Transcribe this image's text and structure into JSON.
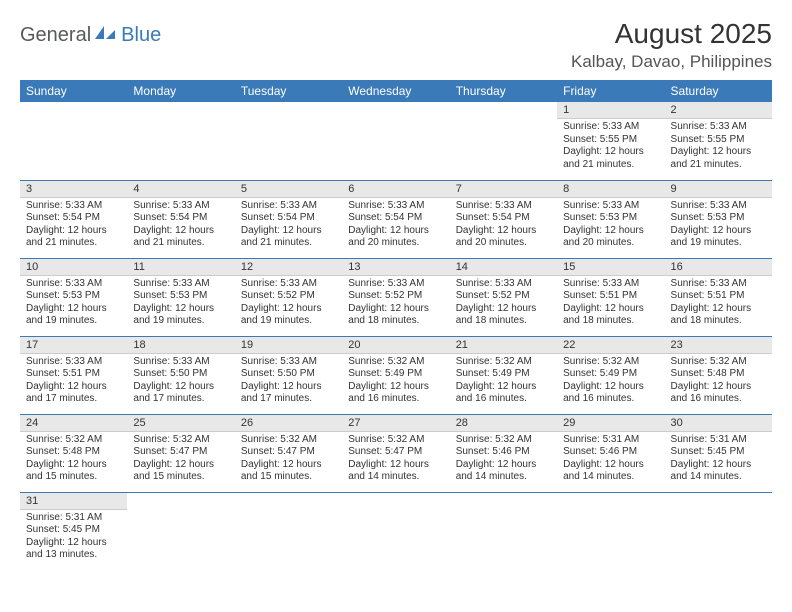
{
  "logo": {
    "part1": "General",
    "part2": "Blue"
  },
  "title": "August 2025",
  "location": "Kalbay, Davao, Philippines",
  "colors": {
    "header_bg": "#3a7ab8",
    "header_fg": "#ffffff",
    "daynum_bg": "#e8e8e8",
    "row_border": "#3a7ab8",
    "text": "#333333"
  },
  "days_of_week": [
    "Sunday",
    "Monday",
    "Tuesday",
    "Wednesday",
    "Thursday",
    "Friday",
    "Saturday"
  ],
  "weeks": [
    [
      {
        "n": "",
        "sunrise": "",
        "sunset": "",
        "daylight": ""
      },
      {
        "n": "",
        "sunrise": "",
        "sunset": "",
        "daylight": ""
      },
      {
        "n": "",
        "sunrise": "",
        "sunset": "",
        "daylight": ""
      },
      {
        "n": "",
        "sunrise": "",
        "sunset": "",
        "daylight": ""
      },
      {
        "n": "",
        "sunrise": "",
        "sunset": "",
        "daylight": ""
      },
      {
        "n": "1",
        "sunrise": "Sunrise: 5:33 AM",
        "sunset": "Sunset: 5:55 PM",
        "daylight": "Daylight: 12 hours and 21 minutes."
      },
      {
        "n": "2",
        "sunrise": "Sunrise: 5:33 AM",
        "sunset": "Sunset: 5:55 PM",
        "daylight": "Daylight: 12 hours and 21 minutes."
      }
    ],
    [
      {
        "n": "3",
        "sunrise": "Sunrise: 5:33 AM",
        "sunset": "Sunset: 5:54 PM",
        "daylight": "Daylight: 12 hours and 21 minutes."
      },
      {
        "n": "4",
        "sunrise": "Sunrise: 5:33 AM",
        "sunset": "Sunset: 5:54 PM",
        "daylight": "Daylight: 12 hours and 21 minutes."
      },
      {
        "n": "5",
        "sunrise": "Sunrise: 5:33 AM",
        "sunset": "Sunset: 5:54 PM",
        "daylight": "Daylight: 12 hours and 21 minutes."
      },
      {
        "n": "6",
        "sunrise": "Sunrise: 5:33 AM",
        "sunset": "Sunset: 5:54 PM",
        "daylight": "Daylight: 12 hours and 20 minutes."
      },
      {
        "n": "7",
        "sunrise": "Sunrise: 5:33 AM",
        "sunset": "Sunset: 5:54 PM",
        "daylight": "Daylight: 12 hours and 20 minutes."
      },
      {
        "n": "8",
        "sunrise": "Sunrise: 5:33 AM",
        "sunset": "Sunset: 5:53 PM",
        "daylight": "Daylight: 12 hours and 20 minutes."
      },
      {
        "n": "9",
        "sunrise": "Sunrise: 5:33 AM",
        "sunset": "Sunset: 5:53 PM",
        "daylight": "Daylight: 12 hours and 19 minutes."
      }
    ],
    [
      {
        "n": "10",
        "sunrise": "Sunrise: 5:33 AM",
        "sunset": "Sunset: 5:53 PM",
        "daylight": "Daylight: 12 hours and 19 minutes."
      },
      {
        "n": "11",
        "sunrise": "Sunrise: 5:33 AM",
        "sunset": "Sunset: 5:53 PM",
        "daylight": "Daylight: 12 hours and 19 minutes."
      },
      {
        "n": "12",
        "sunrise": "Sunrise: 5:33 AM",
        "sunset": "Sunset: 5:52 PM",
        "daylight": "Daylight: 12 hours and 19 minutes."
      },
      {
        "n": "13",
        "sunrise": "Sunrise: 5:33 AM",
        "sunset": "Sunset: 5:52 PM",
        "daylight": "Daylight: 12 hours and 18 minutes."
      },
      {
        "n": "14",
        "sunrise": "Sunrise: 5:33 AM",
        "sunset": "Sunset: 5:52 PM",
        "daylight": "Daylight: 12 hours and 18 minutes."
      },
      {
        "n": "15",
        "sunrise": "Sunrise: 5:33 AM",
        "sunset": "Sunset: 5:51 PM",
        "daylight": "Daylight: 12 hours and 18 minutes."
      },
      {
        "n": "16",
        "sunrise": "Sunrise: 5:33 AM",
        "sunset": "Sunset: 5:51 PM",
        "daylight": "Daylight: 12 hours and 18 minutes."
      }
    ],
    [
      {
        "n": "17",
        "sunrise": "Sunrise: 5:33 AM",
        "sunset": "Sunset: 5:51 PM",
        "daylight": "Daylight: 12 hours and 17 minutes."
      },
      {
        "n": "18",
        "sunrise": "Sunrise: 5:33 AM",
        "sunset": "Sunset: 5:50 PM",
        "daylight": "Daylight: 12 hours and 17 minutes."
      },
      {
        "n": "19",
        "sunrise": "Sunrise: 5:33 AM",
        "sunset": "Sunset: 5:50 PM",
        "daylight": "Daylight: 12 hours and 17 minutes."
      },
      {
        "n": "20",
        "sunrise": "Sunrise: 5:32 AM",
        "sunset": "Sunset: 5:49 PM",
        "daylight": "Daylight: 12 hours and 16 minutes."
      },
      {
        "n": "21",
        "sunrise": "Sunrise: 5:32 AM",
        "sunset": "Sunset: 5:49 PM",
        "daylight": "Daylight: 12 hours and 16 minutes."
      },
      {
        "n": "22",
        "sunrise": "Sunrise: 5:32 AM",
        "sunset": "Sunset: 5:49 PM",
        "daylight": "Daylight: 12 hours and 16 minutes."
      },
      {
        "n": "23",
        "sunrise": "Sunrise: 5:32 AM",
        "sunset": "Sunset: 5:48 PM",
        "daylight": "Daylight: 12 hours and 16 minutes."
      }
    ],
    [
      {
        "n": "24",
        "sunrise": "Sunrise: 5:32 AM",
        "sunset": "Sunset: 5:48 PM",
        "daylight": "Daylight: 12 hours and 15 minutes."
      },
      {
        "n": "25",
        "sunrise": "Sunrise: 5:32 AM",
        "sunset": "Sunset: 5:47 PM",
        "daylight": "Daylight: 12 hours and 15 minutes."
      },
      {
        "n": "26",
        "sunrise": "Sunrise: 5:32 AM",
        "sunset": "Sunset: 5:47 PM",
        "daylight": "Daylight: 12 hours and 15 minutes."
      },
      {
        "n": "27",
        "sunrise": "Sunrise: 5:32 AM",
        "sunset": "Sunset: 5:47 PM",
        "daylight": "Daylight: 12 hours and 14 minutes."
      },
      {
        "n": "28",
        "sunrise": "Sunrise: 5:32 AM",
        "sunset": "Sunset: 5:46 PM",
        "daylight": "Daylight: 12 hours and 14 minutes."
      },
      {
        "n": "29",
        "sunrise": "Sunrise: 5:31 AM",
        "sunset": "Sunset: 5:46 PM",
        "daylight": "Daylight: 12 hours and 14 minutes."
      },
      {
        "n": "30",
        "sunrise": "Sunrise: 5:31 AM",
        "sunset": "Sunset: 5:45 PM",
        "daylight": "Daylight: 12 hours and 14 minutes."
      }
    ],
    [
      {
        "n": "31",
        "sunrise": "Sunrise: 5:31 AM",
        "sunset": "Sunset: 5:45 PM",
        "daylight": "Daylight: 12 hours and 13 minutes."
      },
      {
        "n": "",
        "sunrise": "",
        "sunset": "",
        "daylight": ""
      },
      {
        "n": "",
        "sunrise": "",
        "sunset": "",
        "daylight": ""
      },
      {
        "n": "",
        "sunrise": "",
        "sunset": "",
        "daylight": ""
      },
      {
        "n": "",
        "sunrise": "",
        "sunset": "",
        "daylight": ""
      },
      {
        "n": "",
        "sunrise": "",
        "sunset": "",
        "daylight": ""
      },
      {
        "n": "",
        "sunrise": "",
        "sunset": "",
        "daylight": ""
      }
    ]
  ]
}
